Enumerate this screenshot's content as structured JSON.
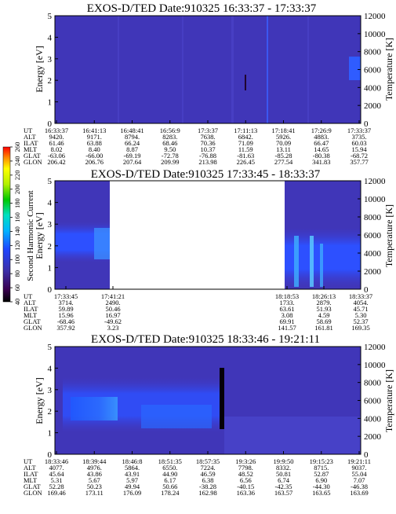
{
  "panels": [
    {
      "title": "EXOS-D/TED   Date:910325   16:33:37 - 17:33:37",
      "ylabel": "Energy [eV]",
      "y2label": "Temperature [K]",
      "ylim": [
        0,
        5
      ],
      "y_ticks": [
        "0",
        "1",
        "2",
        "3",
        "4",
        "5"
      ],
      "y2lim": [
        0,
        12000
      ],
      "y2_ticks": [
        "0",
        "2000",
        "4000",
        "6000",
        "8000",
        "10000",
        "12000"
      ],
      "orbit_labels": [
        "UT",
        "ALT",
        "ILAT",
        "MLT",
        "GLAT",
        "GLON"
      ],
      "orbit": [
        [
          "16:33:37",
          "16:41:13",
          "16:48:41",
          "16:56:9",
          "17:3:37",
          "17:11:13",
          "17:18:41",
          "17:26:9",
          "17:33:37"
        ],
        [
          "9420.",
          "9171.",
          "8794.",
          "8283.",
          "7638.",
          "6842.",
          "5926.",
          "4883.",
          "3735."
        ],
        [
          "61.46",
          "63.88",
          "66.24",
          "68.46",
          "70.36",
          "71.09",
          "70.09",
          "66.47",
          "60.03"
        ],
        [
          "8.02",
          "8.40",
          "8.87",
          "9.50",
          "10.37",
          "11.59",
          "13.11",
          "14.65",
          "15.94"
        ],
        [
          "-63.06",
          "-66.00",
          "-69.19",
          "-72.78",
          "-76.88",
          "-81.63",
          "-85.28",
          "-80.38",
          "-68.72"
        ],
        [
          "206.42",
          "206.76",
          "207.64",
          "209.99",
          "213.98",
          "226.45",
          "277.54",
          "341.83",
          "357.77"
        ]
      ]
    },
    {
      "title": "EXOS-D/TED   Date:910325   17:33:45 - 18:33:37",
      "ylabel": "Energy [eV]",
      "y2label": "Temperature [K]",
      "ylim": [
        0,
        5
      ],
      "y_ticks": [
        "0",
        "1",
        "2",
        "3",
        "4",
        "5"
      ],
      "y2lim": [
        0,
        12000
      ],
      "y2_ticks": [
        "0",
        "2000",
        "4000",
        "6000",
        "8000",
        "10000",
        "12000"
      ],
      "orbit_labels": [
        "UT",
        "ALT",
        "ILAT",
        "MLT",
        "GLAT",
        "GLON"
      ],
      "orbit_left": [
        [
          "17:33:45",
          "17:41:21"
        ],
        [
          "3714.",
          "2490."
        ],
        [
          "59.89",
          "50.46"
        ],
        [
          "15.96",
          "16.97"
        ],
        [
          "-68.46",
          "-49.62"
        ],
        [
          "357.92",
          "3.23"
        ]
      ],
      "orbit_right": [
        [
          "18:18:53",
          "18:26:13",
          "18:33:37"
        ],
        [
          "1733.",
          "2879.",
          "4054."
        ],
        [
          "63.61",
          "51.93",
          "45.71"
        ],
        [
          "3.08",
          "4.59",
          "5.30"
        ],
        [
          "69.91",
          "58.69",
          "52.37"
        ],
        [
          "141.57",
          "161.81",
          "169.35"
        ]
      ]
    },
    {
      "title": "EXOS-D/TED   Date:910325   18:33:46 - 19:21:11",
      "ylabel": "Energy [eV]",
      "y2label": "Temperature [K]",
      "ylim": [
        0,
        5
      ],
      "y_ticks": [
        "0",
        "1",
        "2",
        "3",
        "4",
        "5"
      ],
      "y2lim": [
        0,
        12000
      ],
      "y2_ticks": [
        "0",
        "2000",
        "4000",
        "6000",
        "8000",
        "10000",
        "12000"
      ],
      "orbit_labels": [
        "UT",
        "ALT",
        "ILAT",
        "MLT",
        "GLAT",
        "GLON"
      ],
      "orbit": [
        [
          "18:33:46",
          "18:39:44",
          "18:46:8",
          "18:51:35",
          "18:57:35",
          "19:3:26",
          "19:9:50",
          "19:15:23",
          "19:21:11"
        ],
        [
          "4077.",
          "4976.",
          "5864.",
          "6550.",
          "7224.",
          "7798.",
          "8332.",
          "8715.",
          "9037."
        ],
        [
          "45.64",
          "43.86",
          "43.91",
          "44.90",
          "46.59",
          "48.52",
          "50.81",
          "52.87",
          "55.04"
        ],
        [
          "5.31",
          "5.67",
          "5.97",
          "6.17",
          "6.38",
          "6.56",
          "6.74",
          "6.90",
          "7.07"
        ],
        [
          "52.28",
          "50.23",
          "49.94",
          "50.66",
          "-38.28",
          "-40.15",
          "-42.35",
          "-44.30",
          "-46.38"
        ],
        [
          "169.46",
          "173.11",
          "176.09",
          "178.24",
          "162.98",
          "163.36",
          "163.57",
          "163.65",
          "163.69"
        ]
      ]
    }
  ],
  "colorbar": {
    "label": "Second Harmonic Current",
    "ticks": [
      "40",
      "60",
      "80",
      "100",
      "120",
      "140",
      "160",
      "180",
      "200",
      "220",
      "240",
      "260"
    ]
  },
  "chart_data": [
    {
      "type": "heatmap",
      "title": "EXOS-D/TED   Date:910325   16:33:37 - 17:33:37",
      "ylabel": "Energy [eV]",
      "y2label": "Temperature [K]",
      "ylim": [
        0,
        5
      ],
      "y2lim": [
        0,
        12000
      ],
      "x_ticks": [
        "16:33:37",
        "16:41:13",
        "16:48:41",
        "16:56:9",
        "17:3:37",
        "17:11:13",
        "17:18:41",
        "17:26:9",
        "17:33:37"
      ]
    },
    {
      "type": "heatmap",
      "title": "EXOS-D/TED   Date:910325   17:33:45 - 18:33:37",
      "ylabel": "Energy [eV]",
      "y2label": "Temperature [K]",
      "ylim": [
        0,
        5
      ],
      "y2lim": [
        0,
        12000
      ],
      "x_ticks": [
        "17:33:45",
        "17:41:21",
        "18:18:53",
        "18:26:13",
        "18:33:37"
      ]
    },
    {
      "type": "heatmap",
      "title": "EXOS-D/TED   Date:910325   18:33:46 - 19:21:11",
      "ylabel": "Energy [eV]",
      "y2label": "Temperature [K]",
      "ylim": [
        0,
        5
      ],
      "y2lim": [
        0,
        12000
      ],
      "x_ticks": [
        "18:33:46",
        "18:39:44",
        "18:46:8",
        "18:51:35",
        "18:57:35",
        "19:3:26",
        "19:9:50",
        "19:15:23",
        "19:21:11"
      ]
    }
  ]
}
